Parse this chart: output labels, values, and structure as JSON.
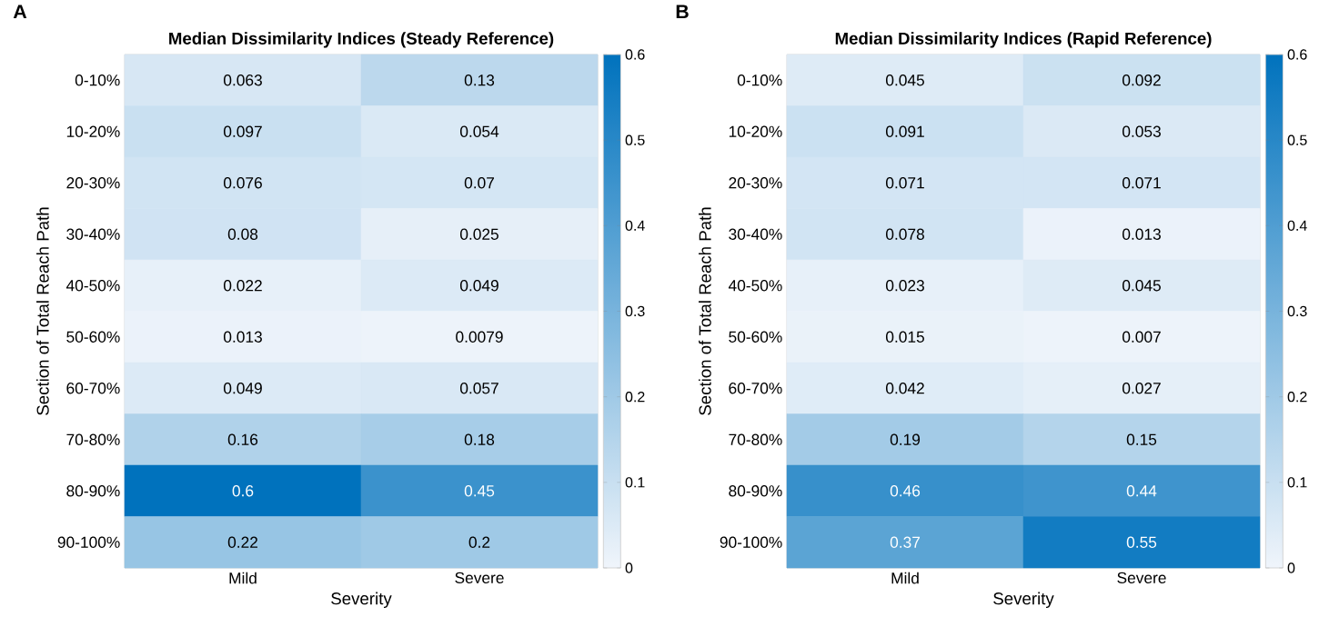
{
  "chart_data": [
    {
      "type": "heatmap",
      "title": "Median Dissimilarity Indices (Steady Reference)",
      "xlabel": "Severity",
      "ylabel": "Section of Total Reach Path",
      "categories": [
        "Mild",
        "Severe"
      ],
      "y_categories": [
        "0-10%",
        "10-20%",
        "20-30%",
        "30-40%",
        "40-50%",
        "50-60%",
        "60-70%",
        "70-80%",
        "80-90%",
        "90-100%"
      ],
      "cells": [
        [
          0.063,
          0.13
        ],
        [
          0.097,
          0.054
        ],
        [
          0.076,
          0.07
        ],
        [
          0.08,
          0.025
        ],
        [
          0.022,
          0.049
        ],
        [
          0.013,
          0.0079
        ],
        [
          0.049,
          0.057
        ],
        [
          0.16,
          0.18
        ],
        [
          0.6,
          0.45
        ],
        [
          0.22,
          0.2
        ]
      ],
      "clim": [
        0,
        0.6
      ],
      "cticks": [
        0,
        0.1,
        0.2,
        0.3,
        0.4,
        0.5,
        0.6
      ],
      "data_labels": true,
      "annotations": [
        "A"
      ]
    },
    {
      "type": "heatmap",
      "title": "Median Dissimilarity Indices (Rapid Reference)",
      "xlabel": "Severity",
      "ylabel": "Section of Total Reach Path",
      "categories": [
        "Mild",
        "Severe"
      ],
      "y_categories": [
        "0-10%",
        "10-20%",
        "20-30%",
        "30-40%",
        "40-50%",
        "50-60%",
        "60-70%",
        "70-80%",
        "80-90%",
        "90-100%"
      ],
      "cells": [
        [
          0.045,
          0.092
        ],
        [
          0.091,
          0.053
        ],
        [
          0.071,
          0.071
        ],
        [
          0.078,
          0.013
        ],
        [
          0.023,
          0.045
        ],
        [
          0.015,
          0.007
        ],
        [
          0.042,
          0.027
        ],
        [
          0.19,
          0.15
        ],
        [
          0.46,
          0.44
        ],
        [
          0.37,
          0.55
        ]
      ],
      "clim": [
        0,
        0.6
      ],
      "cticks": [
        0,
        0.1,
        0.2,
        0.3,
        0.4,
        0.5,
        0.6
      ],
      "data_labels": true,
      "annotations": [
        "B"
      ]
    }
  ]
}
